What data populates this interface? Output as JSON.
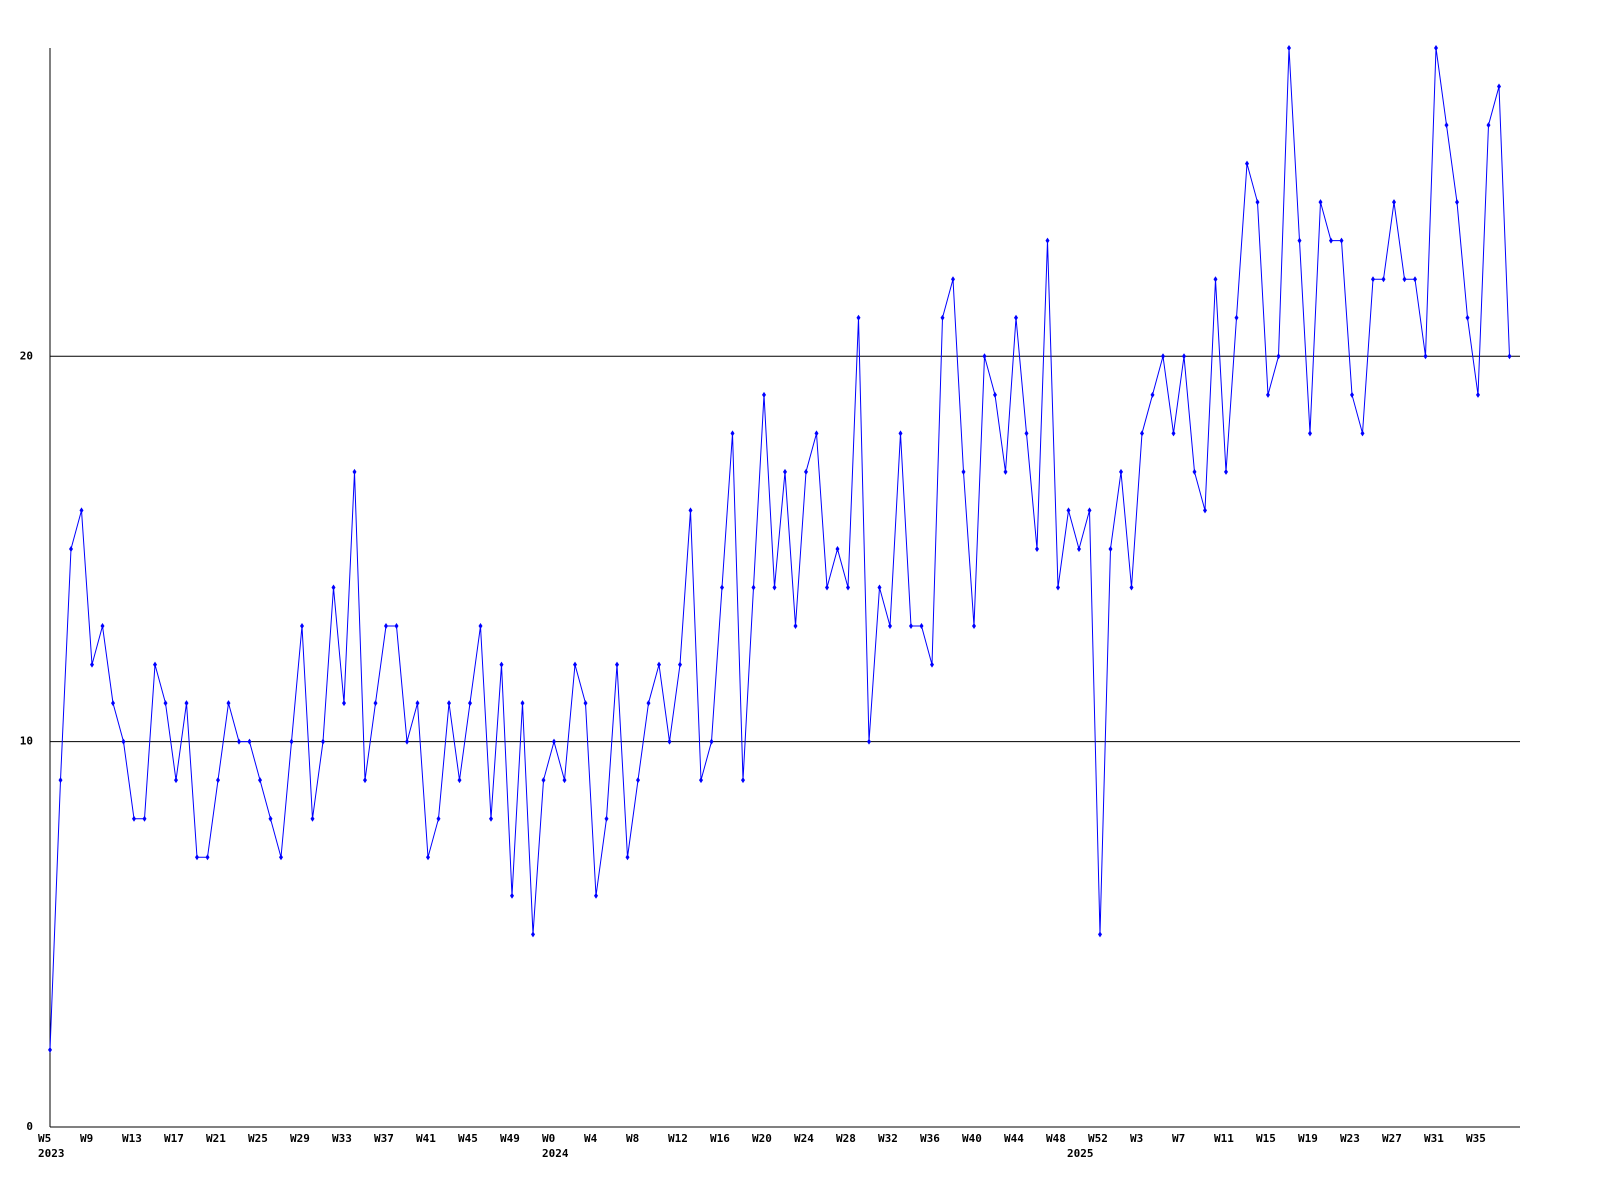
{
  "chart_data": {
    "type": "line",
    "categories": [
      "W5",
      null,
      null,
      null,
      "W9",
      null,
      null,
      null,
      "W13",
      null,
      null,
      null,
      "W17",
      null,
      null,
      null,
      "W21",
      null,
      null,
      null,
      "W25",
      null,
      null,
      null,
      "W29",
      null,
      null,
      null,
      "W33",
      null,
      null,
      null,
      "W37",
      null,
      null,
      null,
      "W41",
      null,
      null,
      null,
      "W45",
      null,
      null,
      null,
      "W49",
      null,
      null,
      null,
      "W0",
      null,
      null,
      null,
      "W4",
      null,
      null,
      null,
      "W8",
      null,
      null,
      null,
      "W12",
      null,
      null,
      null,
      "W16",
      null,
      null,
      null,
      "W20",
      null,
      null,
      null,
      "W24",
      null,
      null,
      null,
      "W28",
      null,
      null,
      null,
      "W32",
      null,
      null,
      null,
      "W36",
      null,
      null,
      null,
      "W40",
      null,
      null,
      null,
      "W44",
      null,
      null,
      null,
      "W48",
      null,
      null,
      null,
      "W52",
      null,
      null,
      null,
      "W3",
      null,
      null,
      null,
      "W7",
      null,
      null,
      null,
      "W11",
      null,
      null,
      null,
      "W15",
      null,
      null,
      null,
      "W19",
      null,
      null,
      null,
      "W23",
      null,
      null,
      null,
      "W27",
      null,
      null,
      null,
      "W31",
      null,
      null,
      null,
      "W35",
      null,
      null,
      null
    ],
    "year_labels": [
      "2023",
      null,
      null,
      null,
      null,
      null,
      null,
      null,
      null,
      null,
      null,
      null,
      null,
      null,
      null,
      null,
      null,
      null,
      null,
      null,
      null,
      null,
      null,
      null,
      null,
      null,
      null,
      null,
      null,
      null,
      null,
      null,
      null,
      null,
      null,
      null,
      null,
      null,
      null,
      null,
      null,
      null,
      null,
      null,
      null,
      null,
      null,
      null,
      "2024",
      null,
      null,
      null,
      null,
      null,
      null,
      null,
      null,
      null,
      null,
      null,
      null,
      null,
      null,
      null,
      null,
      null,
      null,
      null,
      null,
      null,
      null,
      null,
      null,
      null,
      null,
      null,
      null,
      null,
      null,
      null,
      null,
      null,
      null,
      null,
      null,
      null,
      null,
      null,
      null,
      null,
      null,
      null,
      null,
      null,
      null,
      null,
      null,
      null,
      "2025",
      null,
      null,
      null,
      null,
      null,
      null,
      null,
      null,
      null,
      null,
      null,
      null,
      null,
      null,
      null,
      null,
      null,
      null,
      null,
      null,
      null,
      null,
      null,
      null,
      null,
      null,
      null,
      null,
      null,
      null,
      null,
      null,
      null,
      null,
      null,
      null,
      null,
      null,
      null
    ],
    "series": [
      {
        "color": "#0000ff",
        "values": [
          2,
          9,
          15,
          16,
          12,
          13,
          11,
          10,
          8,
          8,
          12,
          11,
          9,
          11,
          7,
          7,
          9,
          11,
          10,
          10,
          9,
          8,
          7,
          10,
          13,
          8,
          10,
          14,
          11,
          17,
          9,
          11,
          13,
          13,
          10,
          11,
          7,
          8,
          11,
          9,
          11,
          13,
          8,
          12,
          6,
          11,
          5,
          9,
          10,
          9,
          12,
          11,
          6,
          8,
          12,
          7,
          9,
          11,
          12,
          10,
          12,
          16,
          9,
          10,
          14,
          18,
          9,
          14,
          19,
          14,
          17,
          13,
          17,
          18,
          14,
          15,
          14,
          21,
          10,
          14,
          13,
          18,
          13,
          13,
          12,
          21,
          22,
          17,
          13,
          20,
          19,
          17,
          21,
          18,
          15,
          23,
          14,
          16,
          15,
          16,
          5,
          15,
          17,
          14,
          18,
          19,
          20,
          18,
          20,
          17,
          16,
          22,
          17,
          21,
          25,
          24,
          19,
          20,
          28,
          23,
          18,
          24,
          23,
          23,
          19,
          18,
          22,
          22,
          24,
          22,
          22,
          20,
          28,
          26,
          24,
          21,
          19,
          26,
          27,
          20
        ]
      }
    ],
    "ylim": [
      0,
      28
    ],
    "yticks": [
      0,
      10,
      20
    ],
    "grid": true
  }
}
